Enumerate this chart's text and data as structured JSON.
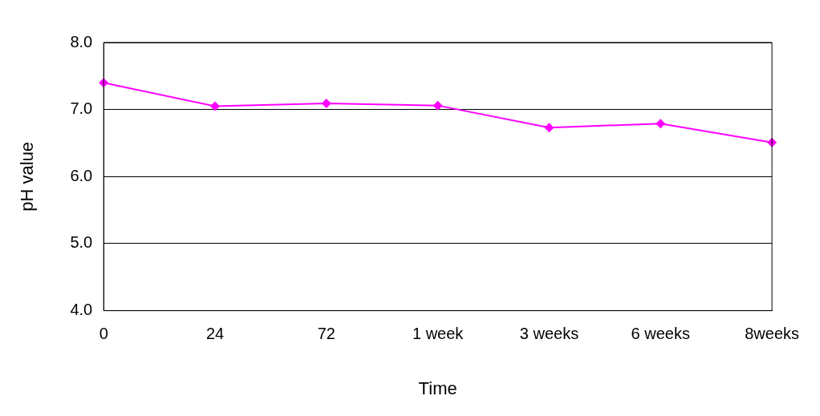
{
  "chart_data": {
    "type": "line",
    "xlabel": "Time",
    "ylabel": "pH value",
    "categories": [
      "0",
      "24",
      "72",
      "1 week",
      "3 weeks",
      "6 weeks",
      "8weeks"
    ],
    "series": [
      {
        "color": "#ff00ff",
        "values": [
          7.4,
          7.05,
          7.09,
          7.06,
          6.73,
          6.79,
          6.51
        ]
      }
    ],
    "ylim": [
      4,
      8
    ],
    "yticks": [
      {
        "value": 4,
        "label": "4.0"
      },
      {
        "value": 5,
        "label": "5.0"
      },
      {
        "value": 6,
        "label": "6.0"
      },
      {
        "value": 7,
        "label": "7.0"
      },
      {
        "value": 8,
        "label": "8.0"
      }
    ],
    "grid": "y",
    "legend": false,
    "marker": "diamond",
    "line_style": "solid"
  }
}
